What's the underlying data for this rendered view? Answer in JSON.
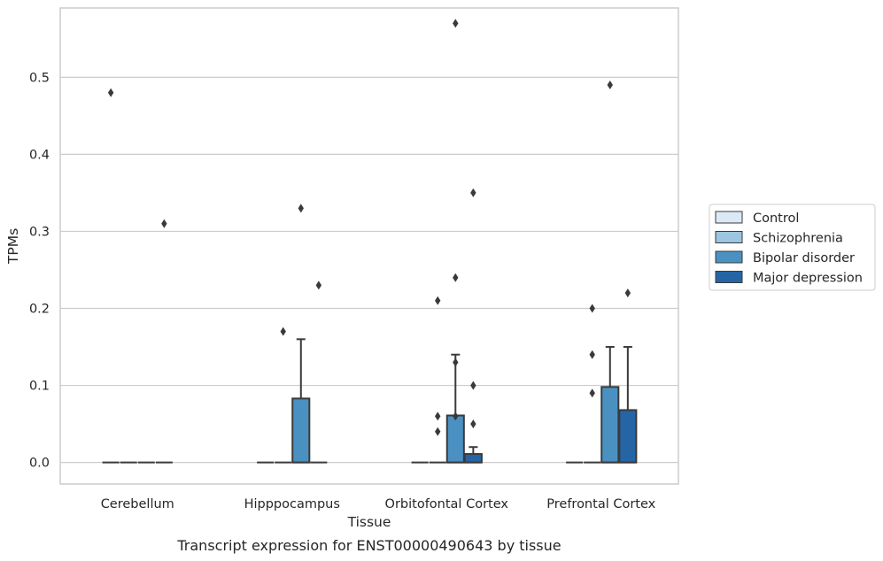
{
  "chart_data": {
    "type": "box",
    "caption": "Transcript expression for ENST00000490643 by tissue",
    "xlabel": "Tissue",
    "ylabel": "TPMs",
    "ylim": [
      -0.028,
      0.59
    ],
    "yticks": [
      0.0,
      0.1,
      0.2,
      0.3,
      0.4,
      0.5
    ],
    "ytick_labels": [
      "0.0",
      "0.1",
      "0.2",
      "0.3",
      "0.4",
      "0.5"
    ],
    "grid": true,
    "legend_position": "right",
    "categories": [
      "Cerebellum",
      "Hipppocampus",
      "Orbitofontal Cortex",
      "Prefrontal Cortex"
    ],
    "series": [
      {
        "name": "Control",
        "color": "#dbe9f6",
        "boxes": [
          {
            "q1": 0,
            "median": 0,
            "q3": 0,
            "whisker_low": 0,
            "whisker_high": 0,
            "outliers": [
              0.48
            ]
          },
          {
            "q1": 0,
            "median": 0,
            "q3": 0,
            "whisker_low": 0,
            "whisker_high": 0,
            "outliers": []
          },
          {
            "q1": 0,
            "median": 0,
            "q3": 0,
            "whisker_low": 0,
            "whisker_high": 0,
            "outliers": []
          },
          {
            "q1": 0,
            "median": 0,
            "q3": 0,
            "whisker_low": 0,
            "whisker_high": 0,
            "outliers": []
          }
        ]
      },
      {
        "name": "Schizophrenia",
        "color": "#9cc5e1",
        "boxes": [
          {
            "q1": 0,
            "median": 0,
            "q3": 0,
            "whisker_low": 0,
            "whisker_high": 0,
            "outliers": []
          },
          {
            "q1": 0,
            "median": 0,
            "q3": 0,
            "whisker_low": 0,
            "whisker_high": 0,
            "outliers": [
              0.17
            ]
          },
          {
            "q1": 0,
            "median": 0,
            "q3": 0,
            "whisker_low": 0,
            "whisker_high": 0,
            "outliers": [
              0.21,
              0.06,
              0.04
            ]
          },
          {
            "q1": 0,
            "median": 0,
            "q3": 0,
            "whisker_low": 0,
            "whisker_high": 0,
            "outliers": [
              0.2,
              0.14,
              0.09
            ]
          }
        ]
      },
      {
        "name": "Bipolar disorder",
        "color": "#4a91c2",
        "boxes": [
          {
            "q1": 0,
            "median": 0,
            "q3": 0,
            "whisker_low": 0,
            "whisker_high": 0,
            "outliers": []
          },
          {
            "q1": 0,
            "median": 0,
            "q3": 0.083,
            "whisker_low": 0,
            "whisker_high": 0.16,
            "outliers": [
              0.33
            ]
          },
          {
            "q1": 0,
            "median": 0,
            "q3": 0.061,
            "whisker_low": 0,
            "whisker_high": 0.14,
            "outliers": [
              0.57,
              0.24,
              0.13,
              0.06
            ]
          },
          {
            "q1": 0,
            "median": 0,
            "q3": 0.098,
            "whisker_low": 0,
            "whisker_high": 0.15,
            "outliers": [
              0.49
            ]
          }
        ]
      },
      {
        "name": "Major depression",
        "color": "#2565a6",
        "boxes": [
          {
            "q1": 0,
            "median": 0,
            "q3": 0,
            "whisker_low": 0,
            "whisker_high": 0,
            "outliers": [
              0.31
            ]
          },
          {
            "q1": 0,
            "median": 0,
            "q3": 0,
            "whisker_low": 0,
            "whisker_high": 0,
            "outliers": [
              0.23
            ]
          },
          {
            "q1": 0,
            "median": 0,
            "q3": 0.011,
            "whisker_low": 0,
            "whisker_high": 0.02,
            "outliers": [
              0.35,
              0.1,
              0.05
            ]
          },
          {
            "q1": 0,
            "median": 0,
            "q3": 0.068,
            "whisker_low": 0,
            "whisker_high": 0.15,
            "outliers": [
              0.22
            ]
          }
        ]
      }
    ]
  }
}
